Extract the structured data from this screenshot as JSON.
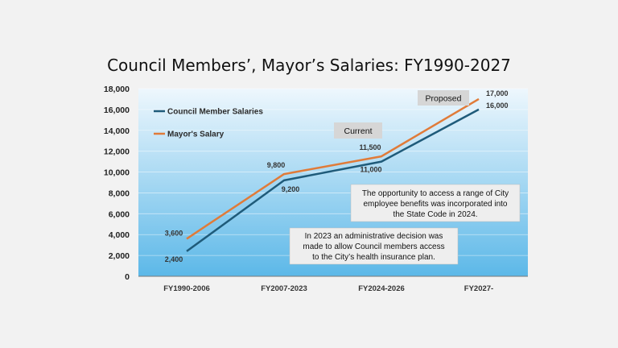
{
  "slide": {
    "title": "Council Members’, Mayor’s Salaries: FY1990-2027"
  },
  "chart_data": {
    "type": "line",
    "title": "Council Members’, Mayor’s Salaries: FY1990-2027",
    "categories": [
      "FY1990-2006",
      "FY2007-2023",
      "FY2024-2026",
      "FY2027-"
    ],
    "series": [
      {
        "name": "Council Member Salaries",
        "values": [
          2400,
          9200,
          11000,
          16000
        ],
        "labels": [
          "2,400",
          "9,200",
          "11,000",
          "16,000"
        ],
        "color": "#1f5b7a"
      },
      {
        "name": "Mayor's Salary",
        "values": [
          3600,
          9800,
          11500,
          17000
        ],
        "labels": [
          "3,600",
          "9,800",
          "11,500",
          "17,000"
        ],
        "color": "#e07b39"
      }
    ],
    "ylim": [
      0,
      18000
    ],
    "yticks": [
      "0",
      "2,000",
      "4,000",
      "6,000",
      "8,000",
      "10,000",
      "12,000",
      "14,000",
      "16,000",
      "18,000"
    ],
    "grid": true,
    "legend_position": "top-left",
    "xlabel": "",
    "ylabel": "",
    "background_gradient": [
      "#eef7fd",
      "#5cb8e8"
    ]
  },
  "annotations": {
    "current_tag": "Current",
    "proposed_tag": "Proposed",
    "benefits_note": [
      "The opportunity to access a range of City",
      "employee benefits was incorporated into",
      "the State Code in 2024."
    ],
    "health_note": [
      "In 2023 an administrative decision was",
      "made to allow Council members access",
      "to the City’s health insurance plan."
    ]
  }
}
